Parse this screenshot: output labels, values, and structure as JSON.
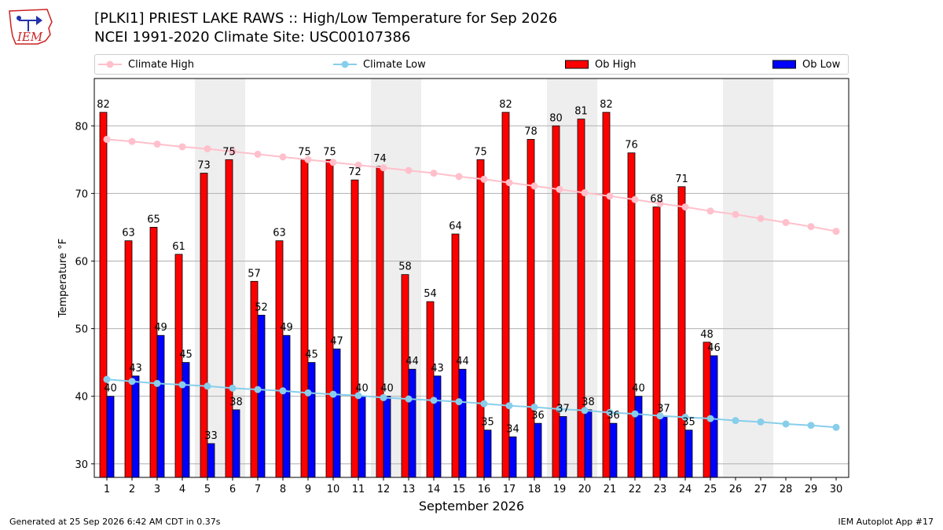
{
  "header": {
    "logo_text": "IEM",
    "title_line1": "[PLKI1] PRIEST LAKE RAWS :: High/Low Temperature for Sep 2026",
    "title_line2": "NCEI 1991-2020 Climate Site: USC00107386"
  },
  "legend": {
    "climate_high": "Climate High",
    "climate_low": "Climate Low",
    "ob_high": "Ob High",
    "ob_low": "Ob Low"
  },
  "footer": {
    "generated": "Generated at 25 Sep 2026 6:42 AM CDT in 0.37s",
    "app": "IEM Autoplot App #17"
  },
  "colors": {
    "ob_high": "#ff0000",
    "ob_low": "#0000ff",
    "climate_high": "#ffc0cb",
    "climate_low": "#87ceeb",
    "weekend_shade": "#eeeeee",
    "grid": "#b0b0b0"
  },
  "chart_data": {
    "type": "bar",
    "xlabel": "September 2026",
    "ylabel": "Temperature °F",
    "ylim": [
      28,
      87
    ],
    "yticks": [
      30,
      40,
      50,
      60,
      70,
      80
    ],
    "grid": "horizontal",
    "legend_position": "top",
    "categories": [
      1,
      2,
      3,
      4,
      5,
      6,
      7,
      8,
      9,
      10,
      11,
      12,
      13,
      14,
      15,
      16,
      17,
      18,
      19,
      20,
      21,
      22,
      23,
      24,
      25,
      26,
      27,
      28,
      29,
      30
    ],
    "shaded_days": [
      [
        5,
        6
      ],
      [
        12,
        13
      ],
      [
        19,
        20
      ],
      [
        26,
        27
      ]
    ],
    "series": [
      {
        "name": "Ob High",
        "kind": "bar",
        "values": [
          82,
          63,
          65,
          61,
          73,
          75,
          57,
          63,
          75,
          75,
          72,
          74,
          58,
          54,
          64,
          75,
          82,
          78,
          80,
          81,
          82,
          76,
          68,
          71,
          48,
          null,
          null,
          null,
          null,
          null
        ]
      },
      {
        "name": "Ob Low",
        "kind": "bar",
        "values": [
          40,
          43,
          49,
          45,
          33,
          38,
          52,
          49,
          45,
          47,
          40,
          40,
          44,
          43,
          44,
          35,
          34,
          36,
          37,
          38,
          36,
          40,
          37,
          35,
          46,
          null,
          null,
          null,
          null,
          null
        ]
      },
      {
        "name": "Climate High",
        "kind": "line",
        "values": [
          78.0,
          77.7,
          77.3,
          76.9,
          76.6,
          76.2,
          75.8,
          75.4,
          75.0,
          74.6,
          74.2,
          73.8,
          73.4,
          73.0,
          72.5,
          72.1,
          71.6,
          71.1,
          70.6,
          70.1,
          69.6,
          69.1,
          68.5,
          68.0,
          67.4,
          66.9,
          66.3,
          65.7,
          65.1,
          64.4
        ]
      },
      {
        "name": "Climate Low",
        "kind": "line",
        "values": [
          42.5,
          42.2,
          41.9,
          41.7,
          41.5,
          41.2,
          41.0,
          40.8,
          40.5,
          40.3,
          40.1,
          39.8,
          39.6,
          39.4,
          39.2,
          38.9,
          38.6,
          38.4,
          38.1,
          37.9,
          37.6,
          37.4,
          37.1,
          36.9,
          36.7,
          36.4,
          36.2,
          35.9,
          35.7,
          35.4
        ]
      }
    ]
  }
}
